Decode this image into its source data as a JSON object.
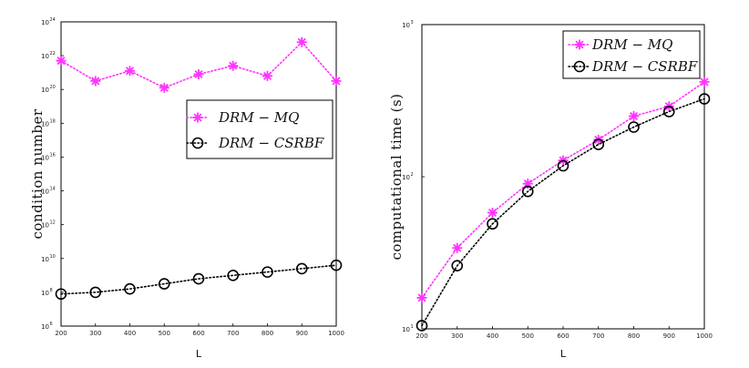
{
  "chart_data": [
    {
      "type": "line",
      "yscale": "log",
      "xlabel": "L",
      "ylabel": "condition number",
      "x": [
        200,
        300,
        400,
        500,
        600,
        700,
        800,
        900,
        1000
      ],
      "xticks": [
        "200",
        "300",
        "400",
        "500",
        "600",
        "700",
        "800",
        "900",
        "1000"
      ],
      "ylim_exp": [
        6,
        24
      ],
      "ytick_exponents": [
        "6",
        "8",
        "10",
        "12",
        "14",
        "16",
        "18",
        "20",
        "22",
        "24"
      ],
      "ytick_base": "10",
      "legend_position": "middle-right",
      "series": [
        {
          "name": "DRM − MQ",
          "color": "#ff33ff",
          "marker": "asterisk",
          "line": "dotted",
          "log10_values": [
            21.7,
            20.5,
            21.1,
            20.1,
            20.9,
            21.4,
            20.8,
            22.8,
            20.5
          ]
        },
        {
          "name": "DRM − CSRBF",
          "color": "#000000",
          "marker": "circle",
          "line": "dotted",
          "log10_values": [
            7.9,
            8.0,
            8.2,
            8.5,
            8.8,
            9.0,
            9.2,
            9.4,
            9.6
          ]
        }
      ]
    },
    {
      "type": "line",
      "yscale": "log",
      "xlabel": "L",
      "ylabel": "computational time (s)",
      "x": [
        200,
        300,
        400,
        500,
        600,
        700,
        800,
        900,
        1000
      ],
      "xticks": [
        "200",
        "300",
        "400",
        "500",
        "600",
        "700",
        "800",
        "900",
        "1000"
      ],
      "ylim_exp": [
        1,
        3
      ],
      "ytick_exponents": [
        "1",
        "2",
        "3"
      ],
      "ytick_base": "10",
      "legend_position": "top-right",
      "series": [
        {
          "name": "DRM − MQ",
          "color": "#ff33ff",
          "marker": "asterisk",
          "line": "dotted",
          "values": [
            16,
            34,
            58,
            90,
            128,
            175,
            250,
            290,
            420
          ]
        },
        {
          "name": "DRM − CSRBF",
          "color": "#000000",
          "marker": "circle",
          "line": "dotted",
          "values": [
            10.5,
            26,
            49,
            80,
            118,
            163,
            212,
            268,
            325
          ]
        }
      ]
    }
  ]
}
